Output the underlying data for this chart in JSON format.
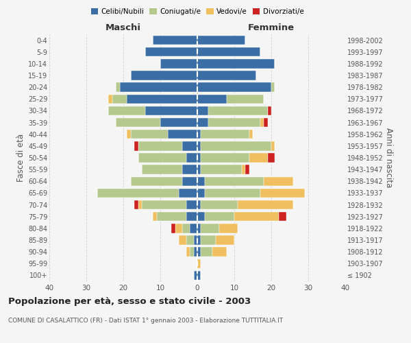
{
  "age_groups": [
    "100+",
    "95-99",
    "90-94",
    "85-89",
    "80-84",
    "75-79",
    "70-74",
    "65-69",
    "60-64",
    "55-59",
    "50-54",
    "45-49",
    "40-44",
    "35-39",
    "30-34",
    "25-29",
    "20-24",
    "15-19",
    "10-14",
    "5-9",
    "0-4"
  ],
  "birth_years": [
    "≤ 1902",
    "1903-1907",
    "1908-1912",
    "1913-1917",
    "1918-1922",
    "1923-1927",
    "1928-1932",
    "1933-1937",
    "1938-1942",
    "1943-1947",
    "1948-1952",
    "1953-1957",
    "1958-1962",
    "1963-1967",
    "1968-1972",
    "1973-1977",
    "1978-1982",
    "1983-1987",
    "1988-1992",
    "1993-1997",
    "1998-2002"
  ],
  "colors": {
    "celibe": "#3a6ea5",
    "coniugato": "#b5c98e",
    "vedovo": "#f0c060",
    "divorziato": "#cc2222"
  },
  "maschi": {
    "celibe": [
      1,
      0,
      1,
      1,
      2,
      3,
      3,
      5,
      4,
      4,
      3,
      4,
      8,
      10,
      14,
      19,
      21,
      18,
      10,
      14,
      12
    ],
    "coniugato": [
      0,
      0,
      1,
      2,
      2,
      8,
      12,
      22,
      14,
      11,
      13,
      12,
      10,
      12,
      10,
      4,
      1,
      0,
      0,
      0,
      0
    ],
    "vedovo": [
      0,
      0,
      1,
      2,
      2,
      1,
      1,
      0,
      0,
      0,
      0,
      0,
      1,
      0,
      0,
      1,
      0,
      0,
      0,
      0,
      0
    ],
    "divorziato": [
      0,
      0,
      0,
      0,
      1,
      0,
      1,
      0,
      0,
      0,
      0,
      1,
      0,
      0,
      0,
      0,
      0,
      0,
      0,
      0,
      0
    ]
  },
  "femmine": {
    "celibe": [
      1,
      0,
      1,
      1,
      1,
      2,
      1,
      2,
      2,
      1,
      1,
      1,
      1,
      3,
      3,
      8,
      20,
      16,
      21,
      17,
      13
    ],
    "coniugato": [
      0,
      0,
      3,
      4,
      5,
      8,
      10,
      15,
      16,
      11,
      13,
      19,
      13,
      14,
      16,
      10,
      1,
      0,
      0,
      0,
      0
    ],
    "vedovo": [
      0,
      1,
      4,
      5,
      5,
      12,
      15,
      12,
      8,
      1,
      5,
      1,
      1,
      1,
      0,
      0,
      0,
      0,
      0,
      0,
      0
    ],
    "divorziato": [
      0,
      0,
      0,
      0,
      0,
      2,
      0,
      0,
      0,
      1,
      2,
      0,
      0,
      1,
      1,
      0,
      0,
      0,
      0,
      0,
      0
    ]
  },
  "title": "Popolazione per età, sesso e stato civile - 2003",
  "subtitle": "COMUNE DI CASALATTICO (FR) - Dati ISTAT 1° gennaio 2003 - Elaborazione TUTTITALIA.IT",
  "xlabel_left": "Maschi",
  "xlabel_right": "Femmine",
  "ylabel_left": "Fasce di età",
  "ylabel_right": "Anni di nascita",
  "xlim": 40,
  "bg_color": "#f5f5f5",
  "grid_color": "#cccccc",
  "legend_labels": [
    "Celibi/Nubili",
    "Coniugati/e",
    "Vedovi/e",
    "Divorziati/e"
  ]
}
